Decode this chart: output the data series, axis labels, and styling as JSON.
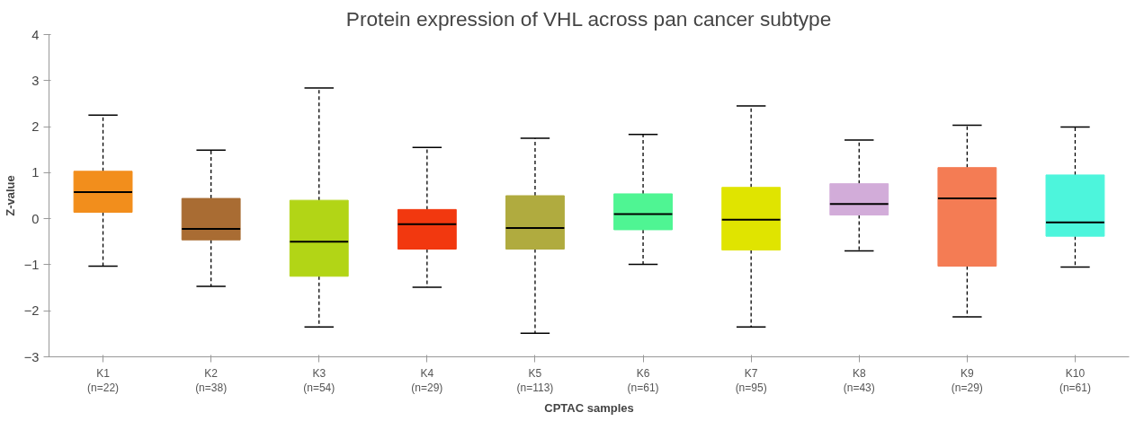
{
  "chart_data": {
    "type": "box",
    "title": "Protein expression of VHL across pan cancer subtype",
    "xlabel": "CPTAC samples",
    "ylabel": "Z-value",
    "categories": [
      "K1\n(n=22)",
      "K2\n(n=38)",
      "K3\n(n=54)",
      "K4\n(n=29)",
      "K5\n(n=113)",
      "K6\n(n=61)",
      "K7\n(n=95)",
      "K8\n(n=43)",
      "K9\n(n=29)",
      "K10\n(n=61)"
    ],
    "colors": [
      "#f28e1c",
      "#a96c33",
      "#b2d516",
      "#f2380f",
      "#b0ab3f",
      "#4ff593",
      "#e0e400",
      "#d2acd9",
      "#f47c54",
      "#4df5dc"
    ],
    "boxes": [
      {
        "low": -1.03,
        "q1": 0.14,
        "median": 0.58,
        "q3": 1.03,
        "high": 2.25
      },
      {
        "low": -1.47,
        "q1": -0.46,
        "median": -0.22,
        "q3": 0.44,
        "high": 1.49
      },
      {
        "low": -2.35,
        "q1": -1.25,
        "median": -0.5,
        "q3": 0.4,
        "high": 2.84
      },
      {
        "low": -1.49,
        "q1": -0.66,
        "median": -0.12,
        "q3": 0.2,
        "high": 1.55
      },
      {
        "low": -2.49,
        "q1": -0.66,
        "median": -0.2,
        "q3": 0.5,
        "high": 1.75
      },
      {
        "low": -0.99,
        "q1": -0.24,
        "median": 0.1,
        "q3": 0.54,
        "high": 1.83
      },
      {
        "low": -2.35,
        "q1": -0.68,
        "median": -0.02,
        "q3": 0.68,
        "high": 2.45
      },
      {
        "low": -0.7,
        "q1": 0.08,
        "median": 0.32,
        "q3": 0.76,
        "high": 1.71
      },
      {
        "low": -2.13,
        "q1": -1.03,
        "median": 0.44,
        "q3": 1.11,
        "high": 2.03
      },
      {
        "low": -1.05,
        "q1": -0.38,
        "median": -0.08,
        "q3": 0.95,
        "high": 1.99
      }
    ],
    "ylim": [
      -3,
      4
    ],
    "yticks": [
      -3,
      -2,
      -1,
      0,
      1,
      2,
      3,
      4
    ],
    "grid": false,
    "line_style": "dashed"
  }
}
